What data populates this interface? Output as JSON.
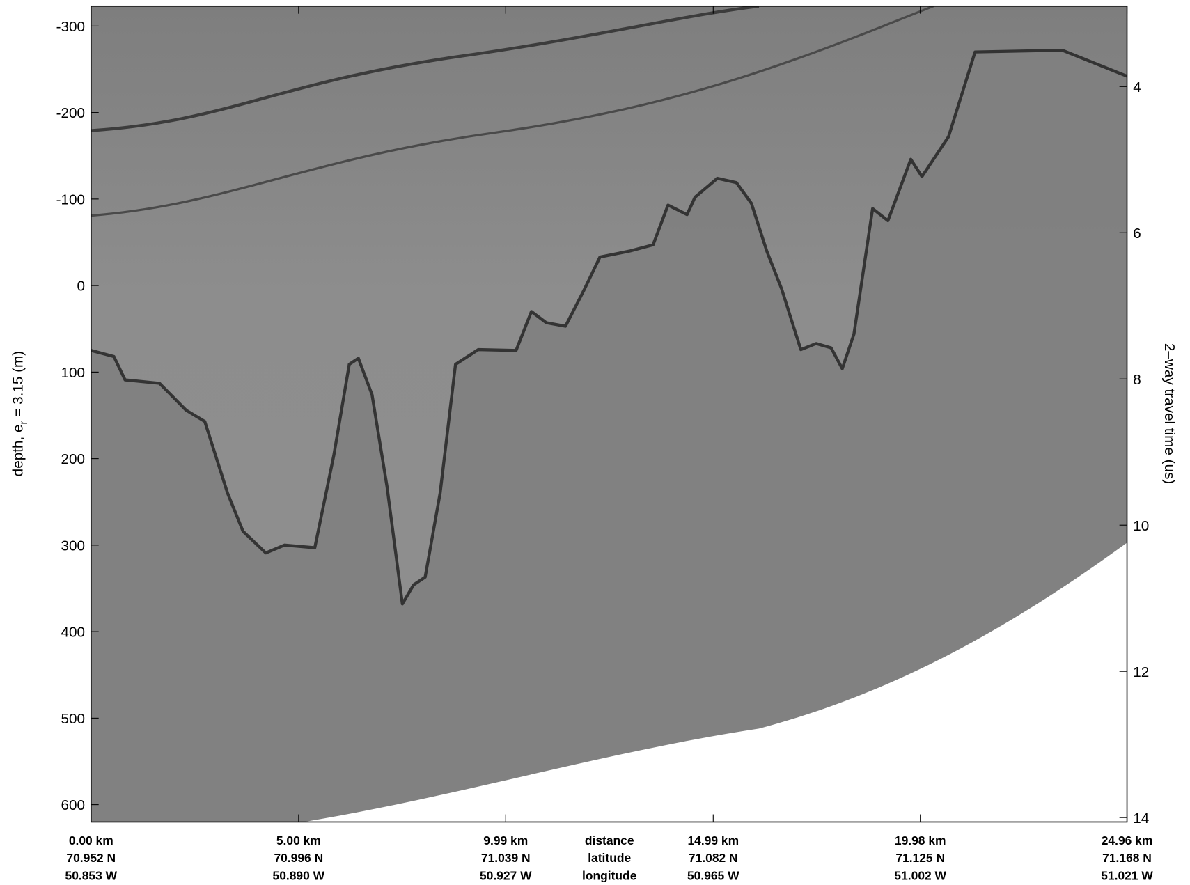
{
  "chart_data": {
    "type": "line",
    "ylabel": [
      "depth, e",
      "r",
      " = 3.15 (m)"
    ],
    "y2label": "2–way travel time (us)",
    "x_axis_labels": [
      "distance",
      "latitude",
      "longitude"
    ],
    "xlim": [
      0,
      24.96
    ],
    "xticks": [
      {
        "value": 0,
        "label": "0.00 km"
      },
      {
        "value": 5,
        "label": "5.00 km"
      },
      {
        "value": 9.99,
        "label": "9.99 km"
      },
      {
        "value": 14.99,
        "label": "14.99 km"
      },
      {
        "value": 19.98,
        "label": "19.98 km"
      },
      {
        "value": 24.96,
        "label": "24.96 km"
      }
    ],
    "latitude_labels": [
      "70.952 N",
      "70.996 N",
      "71.039 N",
      "71.082 N",
      "71.125 N",
      "71.168 N"
    ],
    "longitude_labels": [
      "50.853 W",
      "50.890 W",
      "50.927 W",
      "50.965 W",
      "51.002 W",
      "51.021 W"
    ],
    "ylim": [
      -323,
      620
    ],
    "y_inverted": true,
    "yticks": [
      -300,
      -200,
      -100,
      0,
      100,
      200,
      300,
      400,
      500,
      600
    ],
    "y2lim": [
      2.9,
      14.06
    ],
    "y2ticks": [
      4,
      6,
      8,
      10,
      12,
      14
    ],
    "color": "#262626",
    "x": [
      0,
      0.55,
      0.82,
      1.65,
      2.29,
      2.74,
      3.29,
      3.66,
      4.21,
      4.66,
      5.39,
      5.85,
      6.22,
      6.44,
      6.77,
      7.13,
      7.5,
      7.77,
      8.05,
      8.41,
      8.78,
      9.33,
      10.24,
      10.61,
      10.97,
      11.43,
      11.89,
      12.26,
      12.99,
      13.54,
      13.9,
      14.36,
      14.55,
      15.09,
      15.55,
      15.91,
      16.28,
      16.64,
      17.1,
      17.47,
      17.83,
      18.1,
      18.38,
      18.83,
      19.2,
      19.75,
      20.02,
      20.66,
      21.3,
      23.4,
      24.96
    ],
    "values": [
      75,
      82,
      109,
      113,
      144,
      157,
      240,
      284,
      309,
      300,
      303,
      196,
      91,
      84,
      126,
      232,
      368,
      346,
      337,
      240,
      91,
      74,
      75,
      30,
      43,
      47,
      4,
      -33,
      -40,
      -47,
      -93,
      -82,
      -102,
      -124,
      -119,
      -95,
      -40,
      4,
      74,
      67,
      72,
      96,
      56,
      -89,
      -75,
      -146,
      -126,
      -172,
      -270,
      -272,
      -242
    ]
  }
}
